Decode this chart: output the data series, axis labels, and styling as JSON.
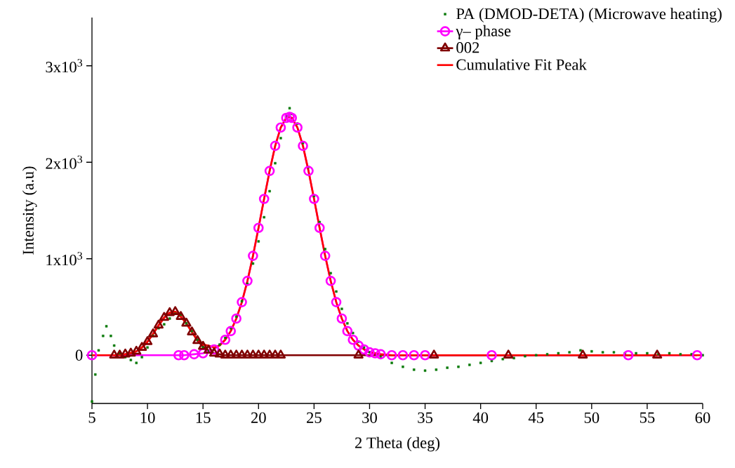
{
  "chart_data": {
    "type": "line",
    "xlabel": "2 Theta (deg)",
    "ylabel": "Intensity (a.u)",
    "xlim": [
      5,
      60
    ],
    "ylim": [
      -500,
      3500
    ],
    "xticks": [
      5,
      10,
      15,
      20,
      25,
      30,
      35,
      40,
      45,
      50,
      55,
      60
    ],
    "yticks": [
      0,
      {
        "value": 1000,
        "label": "1x10$^{3}$"
      },
      {
        "value": 2000,
        "label": "2x10$^{3}$"
      },
      {
        "value": 3000,
        "label": "3x10$^{3}$"
      }
    ],
    "grid": false,
    "legend": "top right",
    "series": [
      {
        "name": "PA (DMOD-DETA) (Microwave heating)",
        "type": "scatter",
        "marker": "square",
        "color": "#0a7a0a",
        "x": [
          5.0,
          5.3,
          5.6,
          6.0,
          6.3,
          6.7,
          7.0,
          7.5,
          8.0,
          8.5,
          9.0,
          9.5,
          10.0,
          10.5,
          11.0,
          11.5,
          12.0,
          12.5,
          13.0,
          13.5,
          14.0,
          14.5,
          15.0,
          15.5,
          16.0,
          16.5,
          17.0,
          17.5,
          18.0,
          18.5,
          19.0,
          19.5,
          20.0,
          20.5,
          21.0,
          21.5,
          22.0,
          22.5,
          22.8,
          23.0,
          23.5,
          24.0,
          24.5,
          25.0,
          25.5,
          26.0,
          26.5,
          27.0,
          27.5,
          28.0,
          28.5,
          29.0,
          29.5,
          30.0,
          31.0,
          32.0,
          33.0,
          34.0,
          35.0,
          36.0,
          37.0,
          38.0,
          39.0,
          40.0,
          41.0,
          42.0,
          43.0,
          44.0,
          45.0,
          46.0,
          47.0,
          48.0,
          49.0,
          50.0,
          51.0,
          52.0,
          53.0,
          54.0,
          55.0,
          56.0,
          57.0,
          58.0,
          59.0,
          60.0
        ],
        "values": [
          -480,
          -200,
          50,
          200,
          300,
          200,
          100,
          20,
          -20,
          -50,
          -80,
          -20,
          80,
          200,
          280,
          320,
          380,
          430,
          420,
          330,
          250,
          160,
          80,
          40,
          60,
          110,
          180,
          280,
          400,
          560,
          740,
          950,
          1180,
          1430,
          1700,
          1990,
          2250,
          2480,
          2560,
          2500,
          2400,
          2200,
          1950,
          1650,
          1380,
          1100,
          850,
          660,
          480,
          330,
          230,
          140,
          80,
          30,
          -20,
          -80,
          -120,
          -150,
          -160,
          -150,
          -130,
          -120,
          -100,
          -80,
          -60,
          -40,
          -30,
          -10,
          0,
          10,
          20,
          30,
          50,
          40,
          30,
          30,
          20,
          20,
          20,
          10,
          20,
          10,
          10,
          0
        ]
      },
      {
        "name": "γ– phase",
        "marker": "circle",
        "color": "#ff00ff",
        "x": [
          5,
          12.8,
          13.3,
          14.2,
          15,
          16,
          17,
          17.5,
          18,
          18.5,
          19,
          19.5,
          20,
          20.5,
          21,
          21.5,
          22,
          22.5,
          22.8,
          23,
          23.5,
          24,
          24.5,
          25,
          25.5,
          26,
          26.5,
          27,
          27.5,
          28,
          28.5,
          29,
          29.5,
          30,
          30.5,
          31,
          32,
          33,
          34,
          35,
          41,
          53.3,
          59.5
        ],
        "values": [
          0,
          0,
          0,
          10,
          20,
          60,
          160,
          250,
          380,
          550,
          770,
          1030,
          1320,
          1620,
          1910,
          2170,
          2360,
          2460,
          2470,
          2460,
          2360,
          2170,
          1910,
          1620,
          1320,
          1030,
          770,
          550,
          380,
          250,
          160,
          100,
          60,
          30,
          20,
          10,
          0,
          0,
          0,
          0,
          0,
          0,
          0
        ]
      },
      {
        "name": "002",
        "marker": "triangle",
        "color": "#800000",
        "x": [
          7,
          7.5,
          8,
          8.5,
          9,
          9.5,
          10,
          10.5,
          11,
          11.5,
          12,
          12.5,
          13,
          13.5,
          14,
          14.5,
          15,
          15.5,
          16,
          16.5,
          17,
          17.5,
          18,
          18.5,
          19,
          19.5,
          20,
          20.5,
          21,
          21.5,
          22,
          29,
          35.8,
          42.5,
          49.2,
          55.9
        ],
        "values": [
          0,
          0,
          10,
          20,
          40,
          80,
          140,
          220,
          310,
          390,
          440,
          450,
          400,
          330,
          240,
          150,
          90,
          50,
          20,
          10,
          0,
          0,
          0,
          0,
          0,
          0,
          0,
          0,
          0,
          0,
          0,
          0,
          0,
          0,
          0,
          0
        ]
      },
      {
        "name": "Cumulative Fit Peak",
        "marker": "none",
        "color": "#ff0000",
        "x": [
          5,
          6,
          7,
          8,
          9,
          9.5,
          10,
          10.5,
          11,
          11.5,
          12,
          12.5,
          13,
          13.5,
          14,
          14.5,
          15,
          15.5,
          16,
          16.5,
          17,
          17.5,
          18,
          18.5,
          19,
          19.5,
          20,
          20.5,
          21,
          21.5,
          22,
          22.5,
          22.8,
          23,
          23.5,
          24,
          24.5,
          25,
          25.5,
          26,
          26.5,
          27,
          27.5,
          28,
          28.5,
          29,
          29.5,
          30,
          31,
          32,
          35,
          40,
          50,
          60
        ],
        "values": [
          0,
          0,
          0,
          10,
          40,
          80,
          140,
          220,
          310,
          390,
          440,
          450,
          400,
          330,
          240,
          160,
          110,
          100,
          80,
          100,
          160,
          250,
          380,
          550,
          770,
          1030,
          1320,
          1620,
          1910,
          2170,
          2360,
          2460,
          2470,
          2460,
          2360,
          2170,
          1910,
          1620,
          1320,
          1030,
          770,
          550,
          380,
          250,
          160,
          100,
          60,
          30,
          10,
          0,
          0,
          0,
          0,
          0
        ]
      }
    ]
  }
}
